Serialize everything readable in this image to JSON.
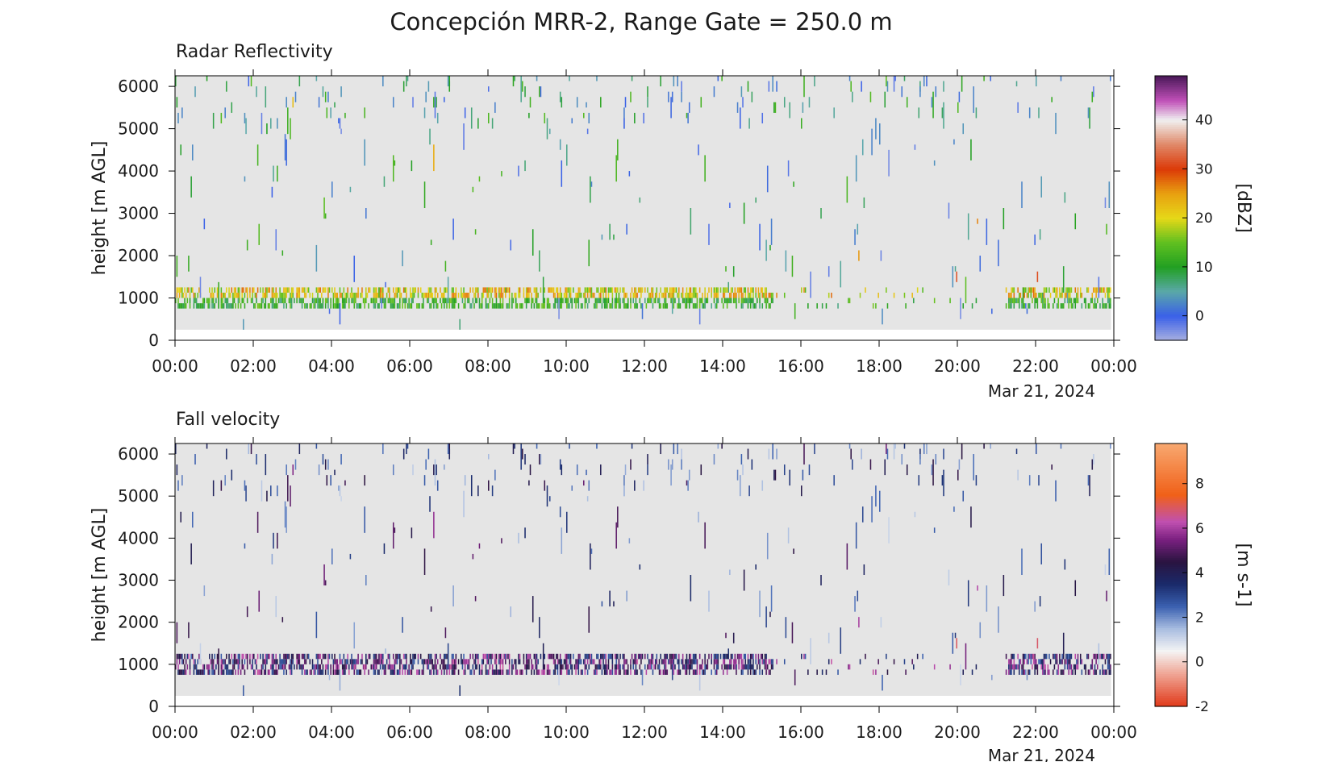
{
  "title": "Concepción MRR-2, Range Gate = 250.0 m",
  "panels": [
    {
      "title": "Radar Reflectivity",
      "ylabel": "height [m AGL]",
      "yticks": [
        "0",
        "1000",
        "2000",
        "3000",
        "4000",
        "5000",
        "6000"
      ],
      "xticks": [
        "00:00",
        "02:00",
        "04:00",
        "06:00",
        "08:00",
        "10:00",
        "12:00",
        "14:00",
        "16:00",
        "18:00",
        "20:00",
        "22:00",
        "00:00"
      ],
      "date_label": "Mar 21, 2024",
      "colorbar_label": "[dBZ]",
      "colorbar_ticks": [
        "0",
        "10",
        "20",
        "30",
        "40"
      ]
    },
    {
      "title": "Fall velocity",
      "ylabel": "height [m AGL]",
      "yticks": [
        "0",
        "1000",
        "2000",
        "3000",
        "4000",
        "5000",
        "6000"
      ],
      "xticks": [
        "00:00",
        "02:00",
        "04:00",
        "06:00",
        "08:00",
        "10:00",
        "12:00",
        "14:00",
        "16:00",
        "18:00",
        "20:00",
        "22:00",
        "00:00"
      ],
      "date_label": "Mar 21, 2024",
      "colorbar_label": "[m s-1]",
      "colorbar_ticks": [
        "-2",
        "0",
        "2",
        "4",
        "6",
        "8"
      ]
    }
  ],
  "chart_data": [
    {
      "type": "heatmap",
      "title": "Radar Reflectivity",
      "xlabel": "",
      "ylabel": "height [m AGL]",
      "units": "dBZ",
      "x_range_hours": [
        0,
        24
      ],
      "ylim": [
        0,
        6250
      ],
      "data_height_range_m": [
        250,
        6250
      ],
      "range_gate_m": 250,
      "color_range": [
        -5,
        49
      ],
      "colormap_stops": [
        {
          "v": -5,
          "c": "#a8b0e0"
        },
        {
          "v": 0,
          "c": "#3a60e8"
        },
        {
          "v": 5,
          "c": "#5aa8a8"
        },
        {
          "v": 10,
          "c": "#22a022"
        },
        {
          "v": 15,
          "c": "#60c020"
        },
        {
          "v": 20,
          "c": "#e6d818"
        },
        {
          "v": 25,
          "c": "#e8a010"
        },
        {
          "v": 30,
          "c": "#dc3a08"
        },
        {
          "v": 35,
          "c": "#e08868"
        },
        {
          "v": 40,
          "c": "#f0f0f0"
        },
        {
          "v": 44,
          "c": "#c050b8"
        },
        {
          "v": 49,
          "c": "#4a1858"
        }
      ],
      "background_no_data": "#e5e5e5",
      "features": [
        {
          "description_time_h": [
            0,
            15.3
          ],
          "height_m": [
            750,
            1250
          ],
          "value_dbz_range": [
            10,
            28
          ]
        },
        {
          "description_time_h": [
            21.2,
            24
          ],
          "height_m": [
            750,
            1250
          ],
          "value_dbz_range": [
            8,
            20
          ]
        },
        {
          "description_time_h": [
            0,
            24
          ],
          "height_m": [
            1500,
            6250
          ],
          "value_dbz_range": [
            -3,
            15
          ]
        }
      ]
    },
    {
      "type": "heatmap",
      "title": "Fall velocity",
      "xlabel": "",
      "ylabel": "height [m AGL]",
      "units": "m s-1",
      "x_range_hours": [
        0,
        24
      ],
      "ylim": [
        0,
        6250
      ],
      "data_height_range_m": [
        250,
        6250
      ],
      "range_gate_m": 250,
      "color_range": [
        -2,
        9.8
      ],
      "colormap_stops": [
        {
          "v": -2,
          "c": "#e03818"
        },
        {
          "v": -0.5,
          "c": "#f0a898"
        },
        {
          "v": 0.5,
          "c": "#f4f4f4"
        },
        {
          "v": 1.5,
          "c": "#a8bce0"
        },
        {
          "v": 2.5,
          "c": "#3a60b0"
        },
        {
          "v": 3.5,
          "c": "#1a2a6a"
        },
        {
          "v": 4.5,
          "c": "#2a1440"
        },
        {
          "v": 5.5,
          "c": "#7a2080"
        },
        {
          "v": 6.3,
          "c": "#c050b0"
        },
        {
          "v": 7.5,
          "c": "#f06018"
        },
        {
          "v": 9.8,
          "c": "#f8a870"
        }
      ],
      "background_no_data": "#e5e5e5",
      "features": [
        {
          "description_time_h": [
            0,
            15.3
          ],
          "height_m": [
            750,
            1250
          ],
          "value_ms_range": [
            3,
            7
          ]
        },
        {
          "description_time_h": [
            21.2,
            24
          ],
          "height_m": [
            750,
            1250
          ],
          "value_ms_range": [
            3,
            6
          ]
        },
        {
          "description_time_h": [
            0,
            24
          ],
          "height_m": [
            1500,
            6250
          ],
          "value_ms_range": [
            1,
            5
          ]
        }
      ]
    }
  ]
}
